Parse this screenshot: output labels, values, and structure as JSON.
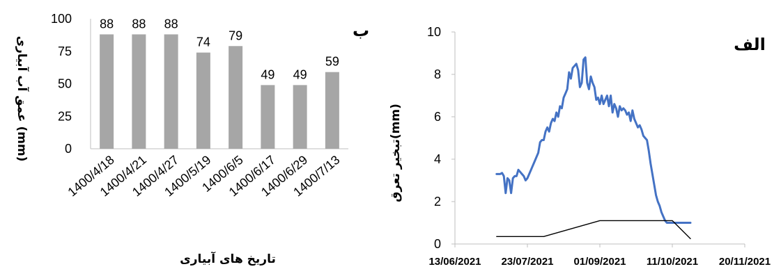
{
  "chart_data": [
    {
      "type": "bar",
      "panel_tag": "ب",
      "categories": [
        "1400/4/18",
        "1400/4/21",
        "1400/4/27",
        "1400/5/19",
        "1400/6/5",
        "1400/6/17",
        "1400/6/29",
        "1400/7/13"
      ],
      "values": [
        88,
        88,
        88,
        74,
        79,
        49,
        49,
        59
      ],
      "data_labels": [
        "88",
        "88",
        "88",
        "74",
        "79",
        "49",
        "49",
        "59"
      ],
      "xlabel": "تاریخ های آبیاری",
      "ylabel": "عمق آب آبیاری (mm)",
      "ylim": [
        0,
        100
      ],
      "yticks": [
        "0",
        "25",
        "50",
        "75",
        "100"
      ],
      "bar_color": "#a6a6a6",
      "grid": false
    },
    {
      "type": "line",
      "panel_tag": "الف",
      "ylabel": "تبخیر تعرق(mm)",
      "xlabel": "",
      "ylim": [
        0,
        10
      ],
      "yticks": [
        "0",
        "2",
        "4",
        "6",
        "8",
        "10"
      ],
      "xlim": [
        "2021-06-13",
        "2021-11-20"
      ],
      "xticks": [
        "13/06/2021",
        "23/07/2021",
        "01/09/2021",
        "11/10/2021",
        "20/11/2021"
      ],
      "grid": false,
      "series": [
        {
          "color": "#4472c4",
          "x": [
            "2021-07-06",
            "2021-07-07",
            "2021-07-08",
            "2021-07-09",
            "2021-07-10",
            "2021-07-11",
            "2021-07-12",
            "2021-07-13",
            "2021-07-14",
            "2021-07-15",
            "2021-07-16",
            "2021-07-17",
            "2021-07-18",
            "2021-07-19",
            "2021-07-20",
            "2021-07-21",
            "2021-07-22",
            "2021-07-23",
            "2021-07-24",
            "2021-07-25",
            "2021-07-26",
            "2021-07-27",
            "2021-07-28",
            "2021-07-29",
            "2021-07-30",
            "2021-07-31",
            "2021-08-01",
            "2021-08-02",
            "2021-08-03",
            "2021-08-04",
            "2021-08-05",
            "2021-08-06",
            "2021-08-07",
            "2021-08-08",
            "2021-08-09",
            "2021-08-10",
            "2021-08-11",
            "2021-08-12",
            "2021-08-13",
            "2021-08-14",
            "2021-08-15",
            "2021-08-16",
            "2021-08-17",
            "2021-08-18",
            "2021-08-19",
            "2021-08-20",
            "2021-08-21",
            "2021-08-22",
            "2021-08-23",
            "2021-08-24",
            "2021-08-25",
            "2021-08-26",
            "2021-08-27",
            "2021-08-28",
            "2021-08-29",
            "2021-08-30",
            "2021-08-31",
            "2021-09-01",
            "2021-09-02",
            "2021-09-03",
            "2021-09-04",
            "2021-09-05",
            "2021-09-06",
            "2021-09-07",
            "2021-09-08",
            "2021-09-09",
            "2021-09-10",
            "2021-09-11",
            "2021-09-12",
            "2021-09-13",
            "2021-09-14",
            "2021-09-15",
            "2021-09-16",
            "2021-09-17",
            "2021-09-18",
            "2021-09-19",
            "2021-09-20",
            "2021-09-21",
            "2021-09-22",
            "2021-09-23",
            "2021-09-24",
            "2021-09-25",
            "2021-09-26",
            "2021-09-27",
            "2021-09-28",
            "2021-09-29",
            "2021-09-30",
            "2021-10-01",
            "2021-10-02",
            "2021-10-03",
            "2021-10-04",
            "2021-10-05",
            "2021-10-06",
            "2021-10-07",
            "2021-10-08",
            "2021-10-09",
            "2021-10-10",
            "2021-10-11",
            "2021-10-12",
            "2021-10-13",
            "2021-10-14",
            "2021-10-15",
            "2021-10-16",
            "2021-10-17",
            "2021-10-18",
            "2021-10-19",
            "2021-10-20",
            "2021-10-21"
          ],
          "y": [
            3.3,
            3.3,
            3.3,
            3.35,
            3.2,
            2.4,
            3.1,
            3.0,
            2.4,
            3.1,
            3.2,
            3.2,
            3.5,
            3.4,
            3.3,
            3.2,
            3.0,
            3.1,
            3.3,
            3.5,
            3.7,
            3.9,
            4.1,
            4.3,
            4.8,
            4.9,
            4.9,
            5.3,
            5.5,
            5.3,
            5.7,
            5.9,
            5.8,
            6.2,
            6.0,
            6.5,
            6.4,
            6.9,
            7.1,
            7.3,
            8.1,
            7.8,
            8.3,
            8.4,
            8.5,
            8.2,
            7.4,
            7.6,
            8.7,
            8.8,
            7.6,
            7.3,
            7.9,
            7.6,
            7.4,
            6.8,
            6.9,
            6.6,
            7.0,
            6.6,
            6.8,
            7.0,
            6.5,
            7.0,
            6.2,
            6.6,
            6.4,
            6.0,
            6.5,
            6.3,
            6.4,
            6.3,
            6.1,
            6.2,
            5.8,
            6.3,
            5.9,
            5.7,
            5.5,
            5.6,
            5.4,
            5.1,
            5.0,
            4.9,
            4.4,
            3.8,
            3.3,
            2.8,
            2.3,
            2.0,
            1.8,
            1.5,
            1.3,
            1.1,
            1.0,
            1.0,
            1.0,
            1.0,
            1.0,
            1.0,
            1.0,
            1.0,
            1.0,
            1.0,
            1.0,
            1.0,
            1.0,
            1.0
          ]
        },
        {
          "color": "#000000",
          "x": [
            "2021-07-06",
            "2021-08-01",
            "2021-09-01",
            "2021-10-11",
            "2021-10-21"
          ],
          "y": [
            0.35,
            0.35,
            1.1,
            1.1,
            0.25
          ]
        }
      ]
    }
  ]
}
